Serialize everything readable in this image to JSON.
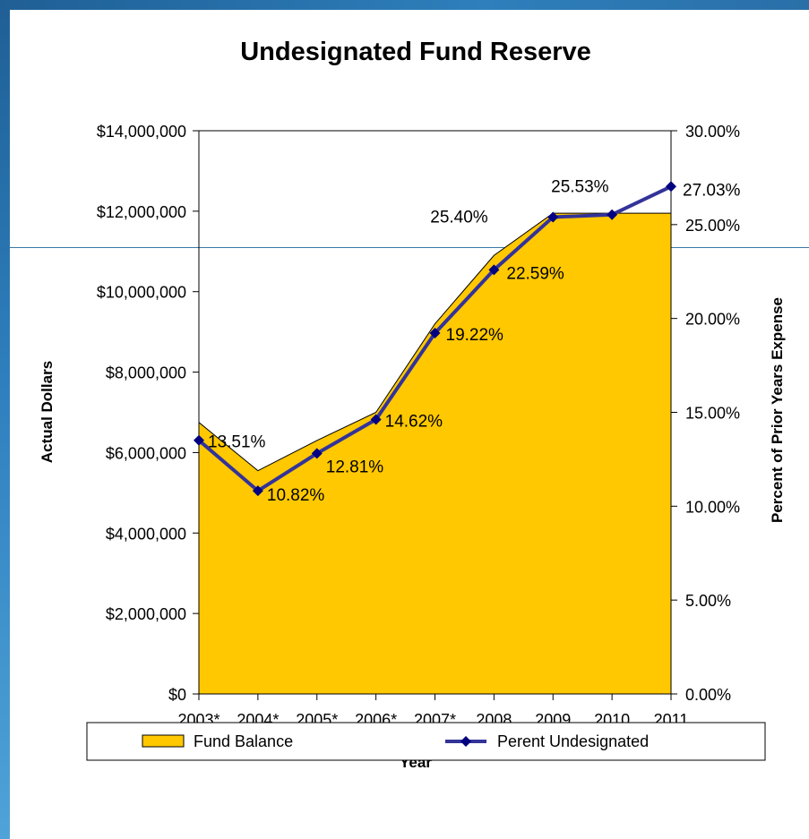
{
  "chart_data": {
    "type": "area",
    "title": "Undesignated Fund Reserve",
    "xlabel": "Year",
    "ylabel": "Actual Dollars",
    "y2label": "Percent of Prior Years Expense",
    "categories": [
      "2003*",
      "2004*",
      "2005*",
      "2006*",
      "2007*",
      "2008",
      "2009",
      "2010",
      "2011"
    ],
    "ylim": [
      0,
      14000000
    ],
    "y_ticks": [
      "$0",
      "$2,000,000",
      "$4,000,000",
      "$6,000,000",
      "$8,000,000",
      "$10,000,000",
      "$12,000,000",
      "$14,000,000"
    ],
    "y2lim": [
      0,
      30
    ],
    "y2_ticks": [
      "0.00%",
      "5.00%",
      "10.00%",
      "15.00%",
      "20.00%",
      "25.00%",
      "30.00%"
    ],
    "series": [
      {
        "name": "Fund Balance",
        "type": "area",
        "color": "#FFC800",
        "values": [
          6750000,
          5550000,
          6300000,
          7000000,
          9200000,
          10900000,
          11950000,
          11950000,
          11950000
        ]
      },
      {
        "name": "Perent Undesignated",
        "type": "line",
        "axis": "right",
        "color": "#333399",
        "marker": "diamond",
        "values": [
          13.51,
          10.82,
          12.81,
          14.62,
          19.22,
          22.59,
          25.4,
          25.53,
          27.03
        ],
        "labels": [
          "13.51%",
          "10.82%",
          "12.81%",
          "14.62%",
          "19.22%",
          "22.59%",
          "25.40%",
          "25.53%",
          "27.03%"
        ]
      }
    ],
    "legend": "bottom",
    "grid": false
  }
}
